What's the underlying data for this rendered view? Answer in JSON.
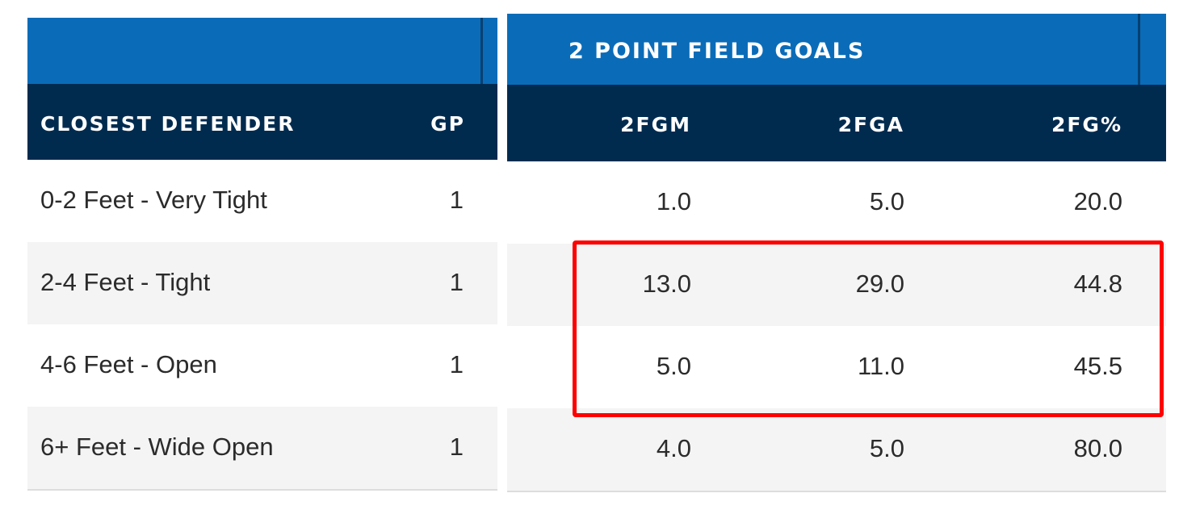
{
  "table": {
    "group_header": "2 POINT FIELD GOALS",
    "columns": {
      "closest_defender": "CLOSEST DEFENDER",
      "gp": "GP",
      "fgm": "2FGM",
      "fga": "2FGA",
      "fg_pct": "2FG%"
    },
    "rows": [
      {
        "label": "0-2 Feet - Very Tight",
        "gp": "1",
        "fgm": "1.0",
        "fga": "5.0",
        "fg_pct": "20.0"
      },
      {
        "label": "2-4 Feet - Tight",
        "gp": "1",
        "fgm": "13.0",
        "fga": "29.0",
        "fg_pct": "44.8"
      },
      {
        "label": "4-6 Feet - Open",
        "gp": "1",
        "fgm": "5.0",
        "fga": "11.0",
        "fg_pct": "45.5"
      },
      {
        "label": "6+ Feet - Wide Open",
        "gp": "1",
        "fgm": "4.0",
        "fga": "5.0",
        "fg_pct": "80.0"
      }
    ]
  },
  "colors": {
    "group_band": "#0a6cb8",
    "header_band": "#002b4f",
    "row_alt": "#f4f4f4",
    "highlight": "#ff0000"
  }
}
